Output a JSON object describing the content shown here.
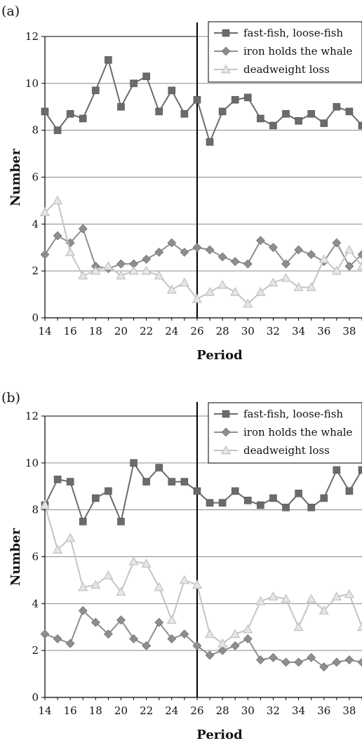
{
  "colors": {
    "fast_fish": "#6b6b6b",
    "iron_holds": "#8e8e8e",
    "deadweight": "#c4c4c4",
    "gridline": "#8a8a8a",
    "divider": "#000000"
  },
  "chart_data": [
    {
      "type": "line",
      "panel_label": "(a)",
      "xlabel": "Period",
      "ylabel": "Number",
      "xlim": [
        14,
        39
      ],
      "ylim": [
        0,
        12
      ],
      "yticks": [
        0,
        2,
        4,
        6,
        8,
        10,
        12
      ],
      "xticks": [
        14,
        16,
        18,
        20,
        22,
        24,
        26,
        28,
        30,
        32,
        34,
        36,
        38
      ],
      "divider_x": 26,
      "grid": "horizontal",
      "legend_position": "top-right",
      "x": [
        14,
        15,
        16,
        17,
        18,
        19,
        20,
        21,
        22,
        23,
        24,
        25,
        26,
        27,
        28,
        29,
        30,
        31,
        32,
        33,
        34,
        35,
        36,
        37,
        38,
        39
      ],
      "series": [
        {
          "name": "fast-fish, loose-fish",
          "marker": "square",
          "color_key": "fast_fish",
          "values": [
            8.8,
            8.0,
            8.7,
            8.5,
            9.7,
            11.0,
            9.0,
            10.0,
            10.3,
            8.8,
            9.7,
            8.7,
            9.3,
            7.5,
            8.8,
            9.3,
            9.4,
            8.5,
            8.2,
            8.7,
            8.4,
            8.7,
            8.3,
            9.0,
            8.8,
            8.2
          ]
        },
        {
          "name": "iron holds the whale",
          "marker": "diamond",
          "color_key": "iron_holds",
          "values": [
            2.7,
            3.5,
            3.2,
            3.8,
            2.2,
            2.1,
            2.3,
            2.3,
            2.5,
            2.8,
            3.2,
            2.8,
            3.0,
            2.9,
            2.6,
            2.4,
            2.3,
            3.3,
            3.0,
            2.3,
            2.9,
            2.7,
            2.4,
            3.2,
            2.2,
            2.7
          ]
        },
        {
          "name": "deadweight loss",
          "marker": "triangle",
          "color_key": "deadweight",
          "values": [
            4.5,
            5.0,
            2.8,
            1.8,
            2.0,
            2.2,
            1.8,
            2.0,
            2.0,
            1.8,
            1.2,
            1.5,
            0.8,
            1.1,
            1.4,
            1.1,
            0.6,
            1.1,
            1.5,
            1.7,
            1.3,
            1.3,
            2.5,
            2.0,
            2.9,
            2.2
          ]
        }
      ]
    },
    {
      "type": "line",
      "panel_label": "(b)",
      "xlabel": "Period",
      "ylabel": "Number",
      "xlim": [
        14,
        39
      ],
      "ylim": [
        0,
        12
      ],
      "yticks": [
        0,
        2,
        4,
        6,
        8,
        10,
        12
      ],
      "xticks": [
        14,
        16,
        18,
        20,
        22,
        24,
        26,
        28,
        30,
        32,
        34,
        36,
        38
      ],
      "divider_x": 26,
      "grid": "horizontal",
      "legend_position": "top-right",
      "x": [
        14,
        15,
        16,
        17,
        18,
        19,
        20,
        21,
        22,
        23,
        24,
        25,
        26,
        27,
        28,
        29,
        30,
        31,
        32,
        33,
        34,
        35,
        36,
        37,
        38,
        39
      ],
      "series": [
        {
          "name": "fast-fish, loose-fish",
          "marker": "square",
          "color_key": "fast_fish",
          "values": [
            8.2,
            9.3,
            9.2,
            7.5,
            8.5,
            8.8,
            7.5,
            10.0,
            9.2,
            9.8,
            9.2,
            9.2,
            8.8,
            8.3,
            8.3,
            8.8,
            8.4,
            8.2,
            8.5,
            8.1,
            8.7,
            8.1,
            8.5,
            9.7,
            8.8,
            9.7
          ]
        },
        {
          "name": "iron holds the whale",
          "marker": "diamond",
          "color_key": "iron_holds",
          "values": [
            2.7,
            2.5,
            2.3,
            3.7,
            3.2,
            2.7,
            3.3,
            2.5,
            2.2,
            3.2,
            2.5,
            2.7,
            2.2,
            1.8,
            2.0,
            2.2,
            2.5,
            1.6,
            1.7,
            1.5,
            1.5,
            1.7,
            1.3,
            1.5,
            1.6,
            1.5
          ]
        },
        {
          "name": "deadweight loss",
          "marker": "triangle",
          "color_key": "deadweight",
          "values": [
            8.2,
            6.3,
            6.8,
            4.7,
            4.8,
            5.2,
            4.5,
            5.8,
            5.7,
            4.7,
            3.3,
            5.0,
            4.8,
            2.7,
            2.3,
            2.7,
            2.9,
            4.1,
            4.3,
            4.2,
            3.0,
            4.2,
            3.7,
            4.3,
            4.4,
            3.0
          ]
        }
      ]
    }
  ]
}
